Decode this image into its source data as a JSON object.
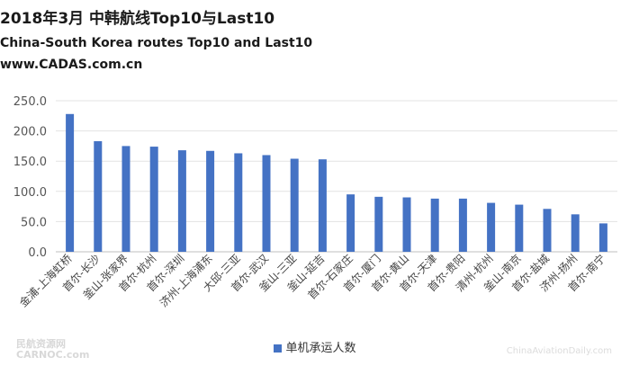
{
  "chart_data": {
    "type": "bar",
    "title": "2018年3月 中韩航线Top10与Last10",
    "subtitle": "China-South Korea routes Top10 and Last10",
    "source_line": "www.CADAS.com.cn",
    "categories": [
      "金浦-上海虹桥",
      "首尔-长沙",
      "釜山-张家界",
      "首尔-杭州",
      "首尔-深圳",
      "济州-上海浦东",
      "大邱-三亚",
      "首尔-武汉",
      "釜山-三亚",
      "釜山-延吉",
      "首尔-石家庄",
      "首尔-厦门",
      "首尔-黄山",
      "首尔-天津",
      "首尔-贵阳",
      "清州-杭州",
      "釜山-南京",
      "首尔-盐城",
      "济州-扬州",
      "首尔-南宁"
    ],
    "series": [
      {
        "name": "单机承运人数",
        "values": [
          228,
          183,
          175,
          174,
          168,
          167,
          163,
          160,
          154,
          153,
          95,
          91,
          90,
          88,
          88,
          81,
          78,
          71,
          62,
          47
        ]
      }
    ],
    "ylim": [
      0,
      250
    ],
    "yticks": [
      "0.0",
      "50.0",
      "100.0",
      "150.0",
      "200.0",
      "250.0"
    ],
    "grid": true,
    "legend": "bottom",
    "bar_color": "#4472C4"
  },
  "watermarks": {
    "left_top": "民航资源网",
    "left_bottom": "CARNOC.com",
    "right": "ChinaAviationDaily.com"
  }
}
